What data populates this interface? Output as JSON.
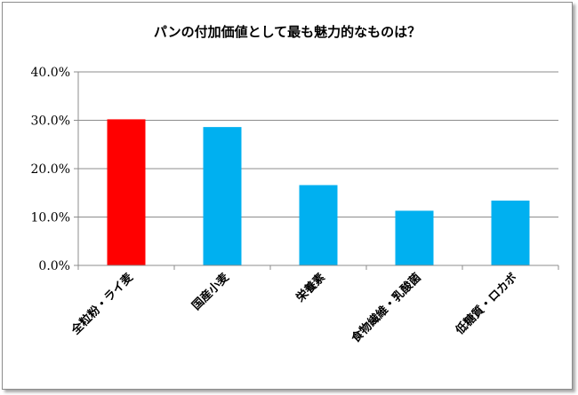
{
  "chart_data": {
    "type": "bar",
    "title": "パンの付加価値として最も魅力的なものは？",
    "categories": [
      "全粒粉・ライ麦",
      "国産小麦",
      "栄養素",
      "食物繊維・乳酸菌",
      "低糖質・ロカボ"
    ],
    "values": [
      30.2,
      28.6,
      16.6,
      11.3,
      13.4
    ],
    "value_unit": "%",
    "ylim": [
      0,
      40
    ],
    "yticks": [
      "0.0%",
      "10.0%",
      "20.0%",
      "30.0%",
      "40.0%"
    ],
    "xlabel": "",
    "ylabel": "",
    "grid": true,
    "legend": "none",
    "colors": {
      "highlight": "#ff0000",
      "default": "#00b0f0",
      "grid": "#8c8c8c",
      "axis": "#8c8c8c"
    },
    "highlight_index": 0
  }
}
